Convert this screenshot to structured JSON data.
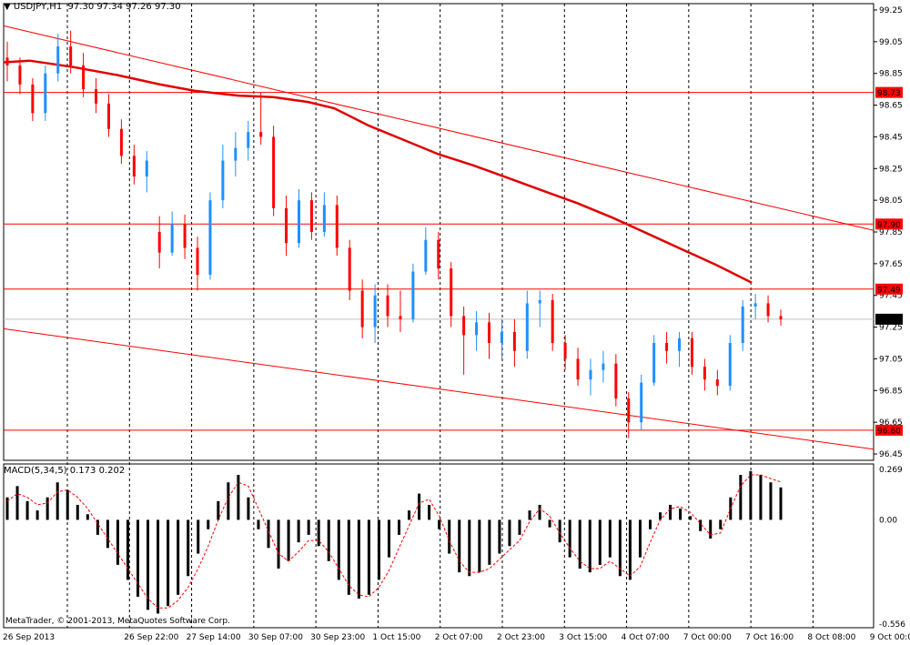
{
  "header": {
    "dropdown_glyph": "▼",
    "symbol": "USDJPY,H1",
    "ohlc": "97.30 97.34 97.26 97.30"
  },
  "macd_header": "MACD(5,34,5) 0.173 0.202",
  "copyright": "MetaTrader, © 2001-2013, MetaQuotes Software Corp.",
  "chart_data": [
    {
      "type": "candlestick",
      "symbol": "USDJPY",
      "timeframe": "H1",
      "ylim": [
        96.41,
        99.29
      ],
      "y_ticks": [
        "99.25",
        "99.05",
        "98.85",
        "98.65",
        "98.45",
        "98.25",
        "98.05",
        "97.85",
        "97.65",
        "97.45",
        "97.25",
        "97.05",
        "96.85",
        "96.65",
        "96.45"
      ],
      "x_tick_labels": [
        "26 Sep 2013",
        "26 Sep 22:00",
        "27 Sep 14:00",
        "30 Sep 07:00",
        "30 Sep 23:00",
        "1 Oct 15:00",
        "2 Oct 07:00",
        "2 Oct 23:00",
        "3 Oct 15:00",
        "4 Oct 07:00",
        "7 Oct 00:00",
        "7 Oct 16:00",
        "8 Oct 08:00",
        "9 Oct 00:00"
      ],
      "horizontal_levels": [
        {
          "value": 98.73,
          "label": "98.73",
          "color": "#ff0000"
        },
        {
          "value": 97.9,
          "label": "97.90",
          "color": "#ff0000"
        },
        {
          "value": 97.49,
          "label": "97.49",
          "color": "#ff0000"
        },
        {
          "value": 96.6,
          "label": "96.60",
          "color": "#ff0000"
        }
      ],
      "current_price": {
        "value": 97.3,
        "label": "97.30"
      },
      "trend_lines": [
        {
          "from": [
            0,
            99.15
          ],
          "to": [
            1.0,
            97.86
          ],
          "color": "#ff0000"
        },
        {
          "from": [
            0,
            97.24
          ],
          "to": [
            1.0,
            96.48
          ],
          "color": "#ff0000"
        }
      ],
      "moving_average": [
        [
          0.0,
          98.92
        ],
        [
          0.03,
          98.93
        ],
        [
          0.08,
          98.89
        ],
        [
          0.13,
          98.84
        ],
        [
          0.18,
          98.78
        ],
        [
          0.22,
          98.74
        ],
        [
          0.27,
          98.71
        ],
        [
          0.31,
          98.7
        ],
        [
          0.35,
          98.67
        ],
        [
          0.38,
          98.63
        ],
        [
          0.42,
          98.52
        ],
        [
          0.46,
          98.43
        ],
        [
          0.5,
          98.34
        ],
        [
          0.54,
          98.27
        ],
        [
          0.58,
          98.19
        ],
        [
          0.62,
          98.11
        ],
        [
          0.66,
          98.03
        ],
        [
          0.7,
          97.94
        ],
        [
          0.74,
          97.84
        ],
        [
          0.78,
          97.74
        ],
        [
          0.82,
          97.64
        ],
        [
          0.86,
          97.53
        ]
      ],
      "candles": [
        {
          "o": 98.95,
          "h": 99.05,
          "l": 98.8,
          "c": 98.9
        },
        {
          "o": 98.9,
          "h": 98.95,
          "l": 98.72,
          "c": 98.78
        },
        {
          "o": 98.78,
          "h": 98.82,
          "l": 98.55,
          "c": 98.6
        },
        {
          "o": 98.6,
          "h": 98.9,
          "l": 98.55,
          "c": 98.85
        },
        {
          "o": 98.85,
          "h": 99.1,
          "l": 98.8,
          "c": 99.02
        },
        {
          "o": 99.02,
          "h": 99.12,
          "l": 98.85,
          "c": 98.9
        },
        {
          "o": 98.9,
          "h": 98.98,
          "l": 98.7,
          "c": 98.75
        },
        {
          "o": 98.75,
          "h": 98.82,
          "l": 98.6,
          "c": 98.66
        },
        {
          "o": 98.66,
          "h": 98.72,
          "l": 98.45,
          "c": 98.5
        },
        {
          "o": 98.5,
          "h": 98.56,
          "l": 98.28,
          "c": 98.33
        },
        {
          "o": 98.33,
          "h": 98.4,
          "l": 98.15,
          "c": 98.2
        },
        {
          "o": 98.2,
          "h": 98.36,
          "l": 98.1,
          "c": 98.3
        },
        {
          "o": 97.85,
          "h": 97.95,
          "l": 97.62,
          "c": 97.72
        },
        {
          "o": 97.72,
          "h": 97.98,
          "l": 97.7,
          "c": 97.9
        },
        {
          "o": 97.9,
          "h": 97.96,
          "l": 97.68,
          "c": 97.75
        },
        {
          "o": 97.75,
          "h": 97.82,
          "l": 97.48,
          "c": 97.58
        },
        {
          "o": 97.58,
          "h": 98.1,
          "l": 97.55,
          "c": 98.05
        },
        {
          "o": 98.05,
          "h": 98.4,
          "l": 98.0,
          "c": 98.3
        },
        {
          "o": 98.3,
          "h": 98.48,
          "l": 98.2,
          "c": 98.38
        },
        {
          "o": 98.38,
          "h": 98.55,
          "l": 98.3,
          "c": 98.48
        },
        {
          "o": 98.48,
          "h": 98.73,
          "l": 98.4,
          "c": 98.45
        },
        {
          "o": 98.45,
          "h": 98.52,
          "l": 97.95,
          "c": 98.0
        },
        {
          "o": 98.0,
          "h": 98.08,
          "l": 97.7,
          "c": 97.78
        },
        {
          "o": 97.78,
          "h": 98.12,
          "l": 97.75,
          "c": 98.05
        },
        {
          "o": 98.05,
          "h": 98.1,
          "l": 97.8,
          "c": 97.85
        },
        {
          "o": 97.85,
          "h": 98.1,
          "l": 97.82,
          "c": 98.02
        },
        {
          "o": 98.02,
          "h": 98.08,
          "l": 97.7,
          "c": 97.75
        },
        {
          "o": 97.75,
          "h": 97.8,
          "l": 97.42,
          "c": 97.48
        },
        {
          "o": 97.48,
          "h": 97.55,
          "l": 97.18,
          "c": 97.25
        },
        {
          "o": 97.25,
          "h": 97.52,
          "l": 97.15,
          "c": 97.45
        },
        {
          "o": 97.45,
          "h": 97.52,
          "l": 97.25,
          "c": 97.32
        },
        {
          "o": 97.32,
          "h": 97.48,
          "l": 97.22,
          "c": 97.3
        },
        {
          "o": 97.3,
          "h": 97.65,
          "l": 97.28,
          "c": 97.6
        },
        {
          "o": 97.6,
          "h": 97.88,
          "l": 97.58,
          "c": 97.8
        },
        {
          "o": 97.8,
          "h": 97.85,
          "l": 97.55,
          "c": 97.62
        },
        {
          "o": 97.62,
          "h": 97.66,
          "l": 97.25,
          "c": 97.32
        },
        {
          "o": 97.32,
          "h": 97.38,
          "l": 96.95,
          "c": 97.2
        },
        {
          "o": 97.2,
          "h": 97.35,
          "l": 97.1,
          "c": 97.28
        },
        {
          "o": 97.28,
          "h": 97.34,
          "l": 97.05,
          "c": 97.15
        },
        {
          "o": 97.15,
          "h": 97.3,
          "l": 97.05,
          "c": 97.22
        },
        {
          "o": 97.22,
          "h": 97.3,
          "l": 97.0,
          "c": 97.1
        },
        {
          "o": 97.1,
          "h": 97.48,
          "l": 97.05,
          "c": 97.4
        },
        {
          "o": 97.4,
          "h": 97.48,
          "l": 97.25,
          "c": 97.42
        },
        {
          "o": 97.42,
          "h": 97.46,
          "l": 97.1,
          "c": 97.15
        },
        {
          "o": 97.15,
          "h": 97.2,
          "l": 96.98,
          "c": 97.05
        },
        {
          "o": 97.05,
          "h": 97.12,
          "l": 96.88,
          "c": 96.92
        },
        {
          "o": 96.92,
          "h": 97.05,
          "l": 96.82,
          "c": 96.98
        },
        {
          "o": 96.98,
          "h": 97.1,
          "l": 96.9,
          "c": 97.02
        },
        {
          "o": 97.02,
          "h": 97.08,
          "l": 96.75,
          "c": 96.8
        },
        {
          "o": 96.8,
          "h": 96.84,
          "l": 96.55,
          "c": 96.65
        },
        {
          "o": 96.65,
          "h": 96.95,
          "l": 96.6,
          "c": 96.9
        },
        {
          "o": 96.9,
          "h": 97.2,
          "l": 96.88,
          "c": 97.15
        },
        {
          "o": 97.15,
          "h": 97.22,
          "l": 97.02,
          "c": 97.1
        },
        {
          "o": 97.1,
          "h": 97.22,
          "l": 97.0,
          "c": 97.18
        },
        {
          "o": 97.18,
          "h": 97.22,
          "l": 96.95,
          "c": 97.0
        },
        {
          "o": 97.0,
          "h": 97.05,
          "l": 96.85,
          "c": 96.92
        },
        {
          "o": 96.92,
          "h": 96.98,
          "l": 96.82,
          "c": 96.88
        },
        {
          "o": 96.88,
          "h": 97.2,
          "l": 96.85,
          "c": 97.15
        },
        {
          "o": 97.15,
          "h": 97.42,
          "l": 97.1,
          "c": 97.38
        },
        {
          "o": 97.38,
          "h": 97.46,
          "l": 97.3,
          "c": 97.4
        },
        {
          "o": 97.4,
          "h": 97.45,
          "l": 97.28,
          "c": 97.32
        },
        {
          "o": 97.32,
          "h": 97.36,
          "l": 97.26,
          "c": 97.3
        }
      ]
    },
    {
      "type": "bar",
      "name": "MACD(5,34,5)",
      "ylim": [
        -0.556,
        0.269
      ],
      "y_ticks": [
        "0.269",
        "0.00",
        "-0.556"
      ],
      "values": [
        0.12,
        0.18,
        0.1,
        0.05,
        0.12,
        0.2,
        0.16,
        0.08,
        0.03,
        -0.08,
        -0.15,
        -0.24,
        -0.32,
        -0.41,
        -0.48,
        -0.5,
        -0.46,
        -0.4,
        -0.3,
        -0.18,
        -0.05,
        0.1,
        0.2,
        0.24,
        0.12,
        -0.05,
        -0.15,
        -0.26,
        -0.22,
        -0.12,
        -0.08,
        -0.14,
        -0.22,
        -0.32,
        -0.4,
        -0.42,
        -0.4,
        -0.32,
        -0.2,
        -0.08,
        0.05,
        0.14,
        0.08,
        -0.05,
        -0.18,
        -0.28,
        -0.3,
        -0.28,
        -0.24,
        -0.18,
        -0.14,
        -0.08,
        0.05,
        0.08,
        -0.04,
        -0.12,
        -0.2,
        -0.26,
        -0.28,
        -0.24,
        -0.2,
        -0.3,
        -0.32,
        -0.2,
        -0.05,
        0.04,
        0.08,
        0.06,
        0.02,
        -0.06,
        -0.1,
        -0.05,
        0.12,
        0.24,
        0.26,
        0.24,
        0.2,
        0.173
      ],
      "signal": [
        0.1,
        0.14,
        0.12,
        0.08,
        0.09,
        0.15,
        0.16,
        0.12,
        0.06,
        -0.02,
        -0.1,
        -0.18,
        -0.26,
        -0.34,
        -0.42,
        -0.47,
        -0.47,
        -0.43,
        -0.36,
        -0.26,
        -0.14,
        0.0,
        0.12,
        0.2,
        0.18,
        0.06,
        -0.06,
        -0.18,
        -0.22,
        -0.17,
        -0.11,
        -0.11,
        -0.17,
        -0.26,
        -0.35,
        -0.4,
        -0.41,
        -0.36,
        -0.27,
        -0.15,
        -0.03,
        0.09,
        0.11,
        0.02,
        -0.11,
        -0.22,
        -0.28,
        -0.28,
        -0.26,
        -0.21,
        -0.16,
        -0.11,
        -0.01,
        0.06,
        0.02,
        -0.07,
        -0.15,
        -0.22,
        -0.26,
        -0.26,
        -0.22,
        -0.26,
        -0.3,
        -0.25,
        -0.12,
        0.0,
        0.06,
        0.07,
        0.04,
        -0.02,
        -0.08,
        -0.07,
        0.06,
        0.18,
        0.24,
        0.24,
        0.22,
        0.202
      ],
      "bar_color": "#000000",
      "signal_color": "#ff0000"
    }
  ]
}
